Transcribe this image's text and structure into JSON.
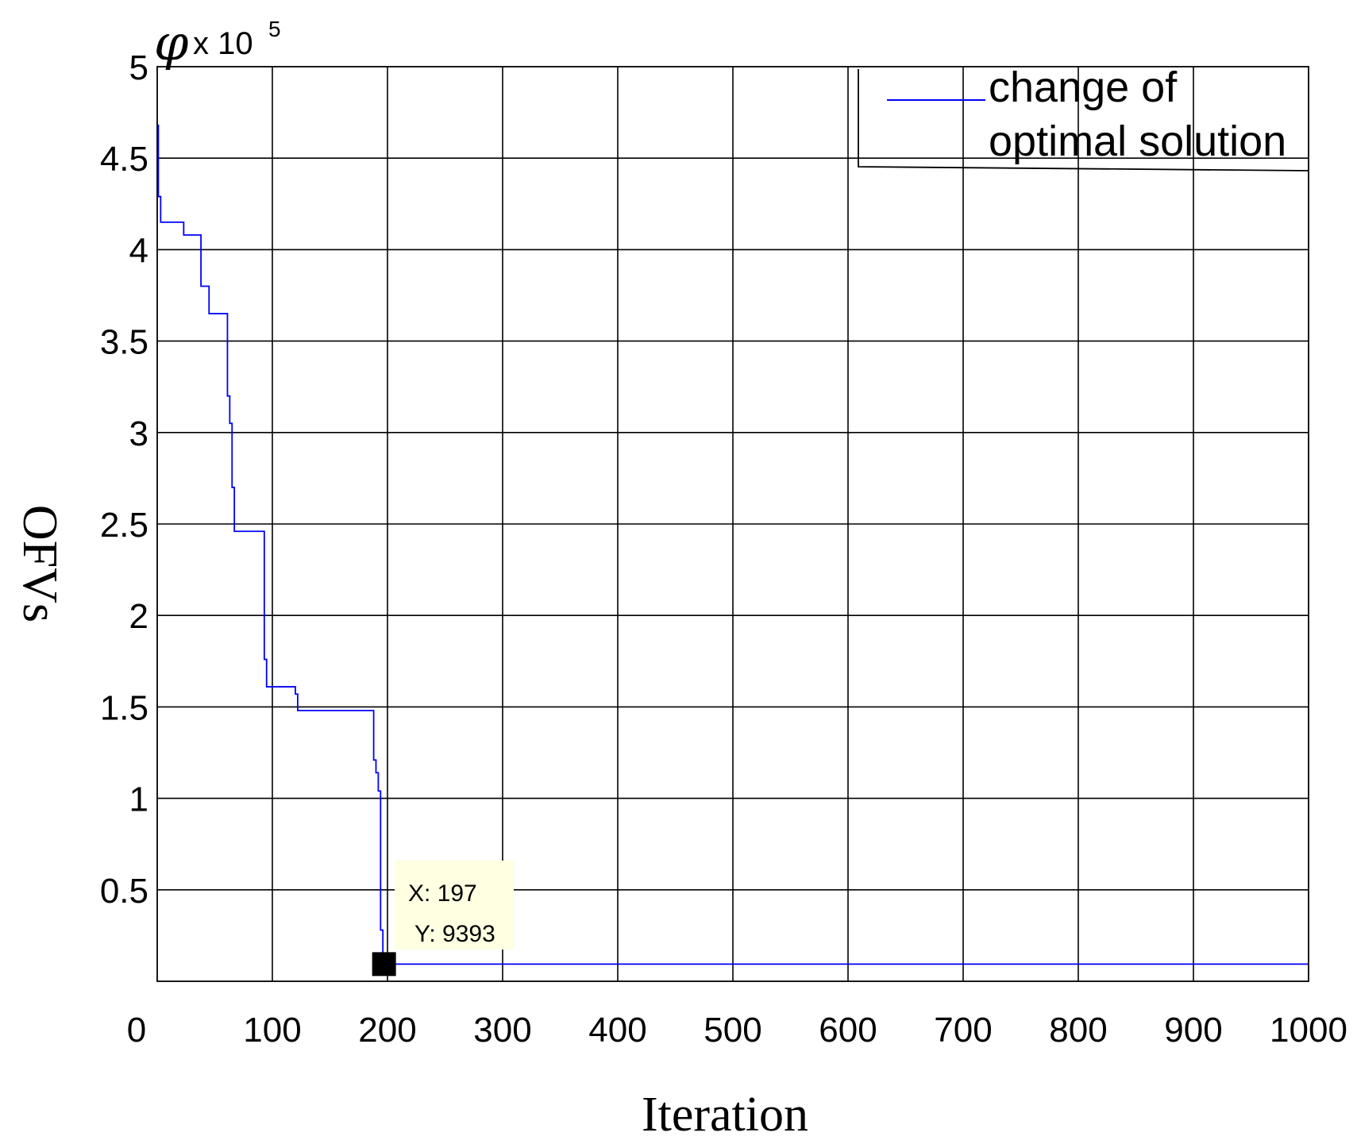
{
  "chart_data": {
    "type": "line",
    "xlabel": "Iteration",
    "ylabel": "OFVs",
    "y_symbol": "φ",
    "y_scale_prefix": "x 10",
    "y_scale_exponent": "5",
    "xlim": [
      0,
      1000
    ],
    "ylim": [
      0,
      5
    ],
    "x_ticks": [
      "0",
      "100",
      "200",
      "300",
      "400",
      "500",
      "600",
      "700",
      "800",
      "900",
      "1000"
    ],
    "y_ticks": [
      "0.5",
      "1",
      "1.5",
      "2",
      "2.5",
      "3",
      "3.5",
      "4",
      "4.5",
      "5"
    ],
    "grid": true,
    "legend_position": "top-right",
    "series": [
      {
        "name": "change of optimal solution",
        "color": "#0000ff",
        "x": [
          0,
          1,
          1,
          3,
          3,
          23,
          23,
          38,
          38,
          45,
          45,
          61,
          61,
          63,
          63,
          65,
          65,
          67,
          67,
          69,
          69,
          93,
          93,
          95,
          95,
          120,
          120,
          122,
          122,
          188,
          188,
          190,
          190,
          192,
          192,
          194,
          194,
          196,
          196,
          197,
          197,
          1000
        ],
        "y": [
          4.68,
          4.68,
          4.29,
          4.29,
          4.15,
          4.15,
          4.08,
          4.08,
          3.8,
          3.8,
          3.65,
          3.65,
          3.2,
          3.2,
          3.05,
          3.05,
          2.7,
          2.7,
          2.46,
          2.46,
          2.46,
          2.46,
          1.76,
          1.76,
          1.61,
          1.61,
          1.57,
          1.57,
          1.48,
          1.48,
          1.21,
          1.21,
          1.14,
          1.14,
          1.04,
          1.04,
          0.28,
          0.28,
          0.093,
          0.093,
          0.09393,
          0.09393
        ]
      }
    ],
    "datatip": {
      "x_text": "X: 197",
      "y_text": "Y: 9393",
      "x": 197,
      "y": 0.09393,
      "background": "#ffffe1"
    }
  }
}
